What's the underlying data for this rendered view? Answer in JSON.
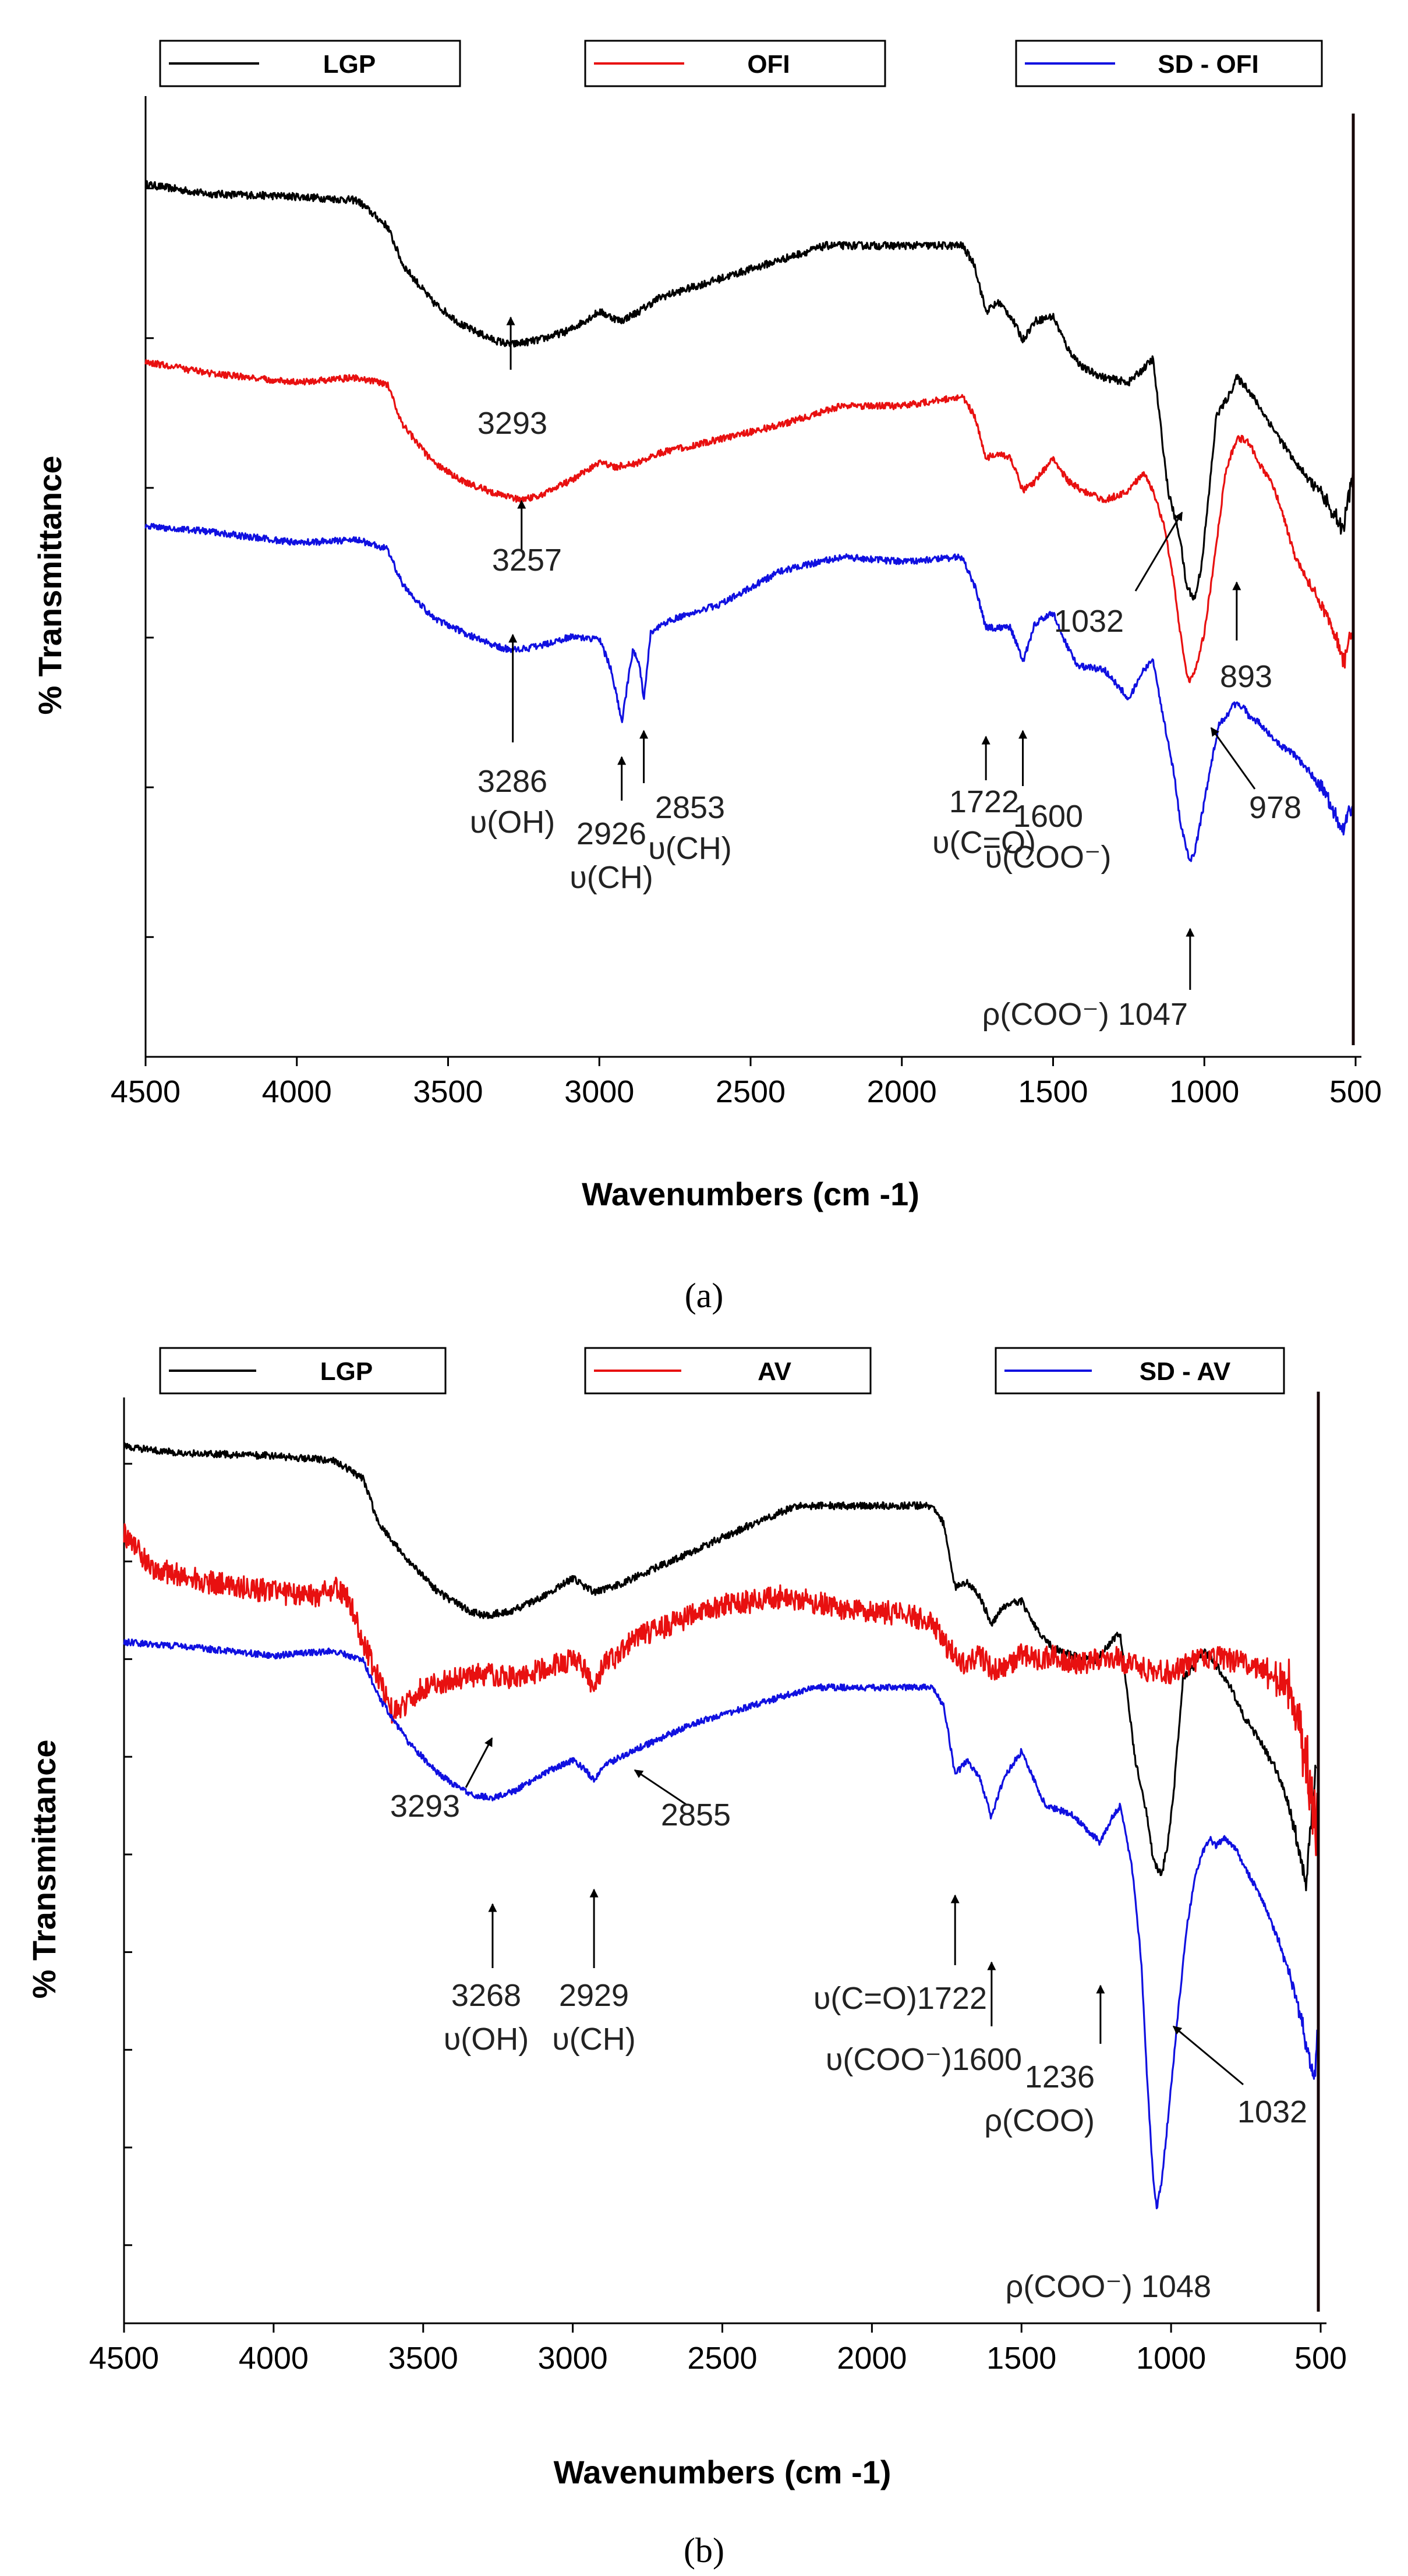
{
  "chart_data": [
    {
      "type": "line",
      "panel_label": "(a)",
      "legend": [
        {
          "name": "LGP",
          "color": "#000000"
        },
        {
          "name": "OFI",
          "color": "#e81010"
        },
        {
          "name": "SD - OFI",
          "color": "#1010e0"
        }
      ],
      "xlabel": "Wavenumbers (cm -1)",
      "ylabel": "% Transmittance",
      "xlim": [
        4500,
        500
      ],
      "x_ticks": [
        "4500",
        "4000",
        "3500",
        "3000",
        "2500",
        "2000",
        "1500",
        "1000",
        "500"
      ],
      "ylim": [
        0,
        100
      ],
      "n_y_ticks": 6,
      "series": [
        {
          "name": "LGP",
          "color": "#000000",
          "noise": 0.4,
          "x": [
            4500,
            4300,
            4000,
            3800,
            3700,
            3650,
            3550,
            3450,
            3350,
            3293,
            3200,
            3100,
            3000,
            2930,
            2870,
            2800,
            2600,
            2400,
            2250,
            2000,
            1800,
            1760,
            1722,
            1680,
            1640,
            1600,
            1560,
            1500,
            1450,
            1400,
            1330,
            1250,
            1200,
            1170,
            1120,
            1080,
            1060,
            1032,
            1010,
            990,
            960,
            920,
            893,
            860,
            840,
            800,
            760,
            700,
            650,
            600,
            560,
            540,
            520,
            505
          ],
          "y": [
            92.5,
            91.5,
            91.2,
            90.8,
            88,
            84,
            80,
            77.5,
            76,
            75.5,
            76,
            77,
            79,
            78,
            79,
            80.5,
            82.5,
            84.5,
            86,
            86,
            86,
            84,
            79,
            80,
            78.5,
            76,
            78,
            78.5,
            75,
            73,
            72,
            71.5,
            73,
            74,
            60,
            55,
            50,
            48.5,
            52,
            58,
            68,
            70,
            72,
            71,
            70,
            68,
            66,
            63,
            61,
            59,
            57,
            56,
            60,
            62
          ]
        },
        {
          "name": "OFI",
          "color": "#e81010",
          "noise": 0.35,
          "x": [
            4500,
            4300,
            4000,
            3800,
            3700,
            3650,
            3550,
            3450,
            3350,
            3257,
            3200,
            3100,
            3000,
            2950,
            2870,
            2800,
            2600,
            2400,
            2200,
            2000,
            1800,
            1760,
            1722,
            1680,
            1640,
            1600,
            1560,
            1500,
            1450,
            1400,
            1330,
            1250,
            1200,
            1170,
            1130,
            1100,
            1080,
            1060,
            1047,
            1030,
            1000,
            978,
            950,
            930,
            910,
            893,
            870,
            850,
            820,
            780,
            750,
            700,
            650,
            600,
            560,
            540,
            520,
            505
          ],
          "y": [
            73.7,
            72.5,
            71.5,
            72,
            71.3,
            67,
            63,
            61,
            59.8,
            59,
            59.5,
            61,
            63,
            62.5,
            63,
            64,
            65.5,
            67,
            69,
            69,
            70,
            68,
            63.5,
            64,
            63.5,
            60,
            61,
            63.5,
            61,
            60,
            59,
            60,
            62,
            60,
            56,
            50,
            45,
            41,
            39.8,
            41,
            45,
            50,
            57,
            62,
            64,
            65.5,
            65.5,
            65,
            63,
            61,
            58.5,
            53,
            50,
            47,
            44,
            42,
            44,
            46
          ]
        },
        {
          "name": "SD - OFI",
          "color": "#1010e0",
          "noise": 0.35,
          "x": [
            4500,
            4300,
            4000,
            3800,
            3700,
            3650,
            3550,
            3450,
            3350,
            3286,
            3200,
            3100,
            3000,
            2960,
            2926,
            2890,
            2870,
            2853,
            2830,
            2750,
            2600,
            2400,
            2200,
            2000,
            1800,
            1760,
            1722,
            1680,
            1640,
            1600,
            1560,
            1500,
            1460,
            1420,
            1330,
            1250,
            1200,
            1170,
            1130,
            1100,
            1080,
            1060,
            1047,
            1030,
            1000,
            978,
            950,
            930,
            910,
            893,
            870,
            850,
            820,
            780,
            750,
            700,
            650,
            600,
            560,
            540,
            520,
            505
          ],
          "y": [
            56.3,
            55.7,
            54.5,
            54.8,
            53.8,
            50,
            46.5,
            45,
            43.6,
            43.1,
            43.5,
            44.5,
            44.3,
            41,
            35.5,
            43,
            42,
            38,
            45,
            46.5,
            48,
            51.5,
            53,
            52.5,
            53,
            50,
            45.5,
            45.5,
            45.5,
            41.8,
            46,
            47,
            44,
            41.5,
            41,
            38,
            41,
            42,
            35,
            30,
            25,
            22,
            20.7,
            22,
            27,
            31,
            35.5,
            36,
            37,
            37.5,
            37,
            36,
            35.5,
            34,
            33,
            32,
            30,
            28,
            25,
            24,
            26,
            27
          ]
        }
      ],
      "annotations": [
        {
          "lines": [
            "3293"
          ]
        },
        {
          "lines": [
            "3257"
          ]
        },
        {
          "lines": [
            "3286",
            "υ(OH)"
          ]
        },
        {
          "lines": [
            "2926",
            "υ(CH)"
          ]
        },
        {
          "lines": [
            "2853",
            "υ(CH)"
          ]
        },
        {
          "lines": [
            "1722",
            "υ(C=O)"
          ]
        },
        {
          "lines": [
            "1600",
            "υ(COO⁻)"
          ]
        },
        {
          "lines": [
            "1032"
          ]
        },
        {
          "lines": [
            "893"
          ]
        },
        {
          "lines": [
            "978"
          ]
        },
        {
          "lines": [
            "ρ(COO⁻) 1047"
          ]
        }
      ]
    },
    {
      "type": "line",
      "panel_label": "(b)",
      "legend": [
        {
          "name": "LGP",
          "color": "#000000"
        },
        {
          "name": "AV",
          "color": "#e81010"
        },
        {
          "name": "SD - AV",
          "color": "#1010e0"
        }
      ],
      "xlabel": "Wavenumbers (cm -1)",
      "ylabel": "% Transmittance",
      "xlim": [
        4500,
        500
      ],
      "x_ticks": [
        "4500",
        "4000",
        "3500",
        "3000",
        "2500",
        "2000",
        "1500",
        "1000",
        "500"
      ],
      "ylim": [
        0,
        100
      ],
      "n_y_ticks": 9,
      "series": [
        {
          "name": "LGP",
          "color": "#000000",
          "noise": 0.4,
          "x": [
            4500,
            4300,
            4000,
            3800,
            3700,
            3650,
            3550,
            3450,
            3350,
            3293,
            3200,
            3100,
            3000,
            2930,
            2870,
            2800,
            2600,
            2400,
            2250,
            2000,
            1800,
            1760,
            1722,
            1680,
            1640,
            1600,
            1560,
            1500,
            1450,
            1400,
            1330,
            1250,
            1200,
            1170,
            1120,
            1080,
            1060,
            1032,
            1010,
            990,
            960,
            920,
            893,
            860,
            840,
            800,
            760,
            700,
            650,
            600,
            570,
            550,
            530,
            515
          ],
          "y": [
            96.5,
            95.8,
            95.5,
            95,
            93,
            88,
            84,
            80.5,
            78.5,
            77.9,
            78.5,
            80,
            82,
            80.5,
            81,
            82,
            85,
            88,
            90,
            90,
            90,
            88,
            81,
            81.5,
            80,
            77,
            79,
            79.5,
            76.5,
            74.5,
            73.5,
            73,
            75,
            76,
            62,
            56,
            51,
            49.3,
            53,
            59,
            71,
            72.5,
            74,
            73,
            72,
            70,
            67,
            64,
            61,
            56,
            52,
            48,
            56,
            62
          ]
        },
        {
          "name": "AV",
          "color": "#e81010",
          "noise": 1.3,
          "x": [
            4500,
            4400,
            4200,
            4000,
            3850,
            3800,
            3750,
            3700,
            3650,
            3600,
            3500,
            3400,
            3300,
            3200,
            3100,
            3000,
            2960,
            2930,
            2890,
            2855,
            2800,
            2700,
            2600,
            2500,
            2400,
            2300,
            2200,
            2100,
            2000,
            1900,
            1800,
            1760,
            1720,
            1680,
            1640,
            1600,
            1550,
            1500,
            1450,
            1400,
            1300,
            1200,
            1100,
            1000,
            950,
            900,
            850,
            800,
            750,
            700,
            650,
            600,
            580,
            560,
            540,
            520,
            510
          ],
          "y": [
            87,
            83,
            81.5,
            80.5,
            80,
            81,
            80,
            75,
            71,
            67,
            70,
            71,
            71.5,
            71,
            72,
            73,
            72,
            69.5,
            73,
            73,
            75.5,
            76.5,
            78,
            79,
            79.5,
            80,
            79.5,
            78.5,
            78.5,
            78,
            77.5,
            75,
            73.5,
            72.5,
            73.5,
            72,
            72,
            73.5,
            73,
            73.5,
            72.5,
            73.5,
            72,
            71.7,
            72.5,
            73,
            73.3,
            73,
            72.7,
            72,
            71,
            70,
            67,
            64,
            60,
            56,
            54
          ]
        },
        {
          "name": "SD - AV",
          "color": "#1010e0",
          "noise": 0.35,
          "x": [
            4500,
            4300,
            4000,
            3800,
            3700,
            3650,
            3550,
            3450,
            3350,
            3268,
            3200,
            3100,
            3000,
            2960,
            2929,
            2890,
            2800,
            2700,
            2600,
            2400,
            2200,
            2000,
            1800,
            1760,
            1722,
            1680,
            1640,
            1600,
            1560,
            1500,
            1460,
            1420,
            1330,
            1236,
            1200,
            1170,
            1130,
            1100,
            1080,
            1060,
            1048,
            1030,
            1000,
            980,
            950,
            920,
            893,
            870,
            850,
            820,
            780,
            750,
            700,
            650,
            600,
            560,
            540,
            520,
            510
          ],
          "y": [
            75,
            74.5,
            73.5,
            74,
            73,
            69,
            64,
            60.5,
            58.3,
            57.8,
            58.5,
            60.5,
            62,
            61,
            59.8,
            61.5,
            63,
            64.5,
            66,
            68,
            70,
            70,
            70,
            68,
            60.4,
            62,
            60,
            55.6,
            60,
            63,
            60,
            57,
            56,
            52.9,
            55.5,
            57,
            50,
            40,
            27,
            16,
            12.6,
            16,
            26,
            33,
            43,
            49,
            52,
            53.3,
            52.5,
            53.5,
            52,
            50,
            47,
            43,
            38,
            33,
            29,
            27,
            32
          ]
        }
      ],
      "annotations": [
        {
          "lines": [
            "3293"
          ]
        },
        {
          "lines": [
            "2855"
          ]
        },
        {
          "lines": [
            "3268",
            "υ(OH)"
          ]
        },
        {
          "lines": [
            "2929",
            "υ(CH)"
          ]
        },
        {
          "lines": [
            "υ(C=O)1722"
          ]
        },
        {
          "lines": [
            "υ(COO⁻)1600"
          ]
        },
        {
          "lines": [
            "1236",
            "ρ(COO)"
          ]
        },
        {
          "lines": [
            "1032"
          ]
        },
        {
          "lines": [
            "ρ(COO⁻) 1048"
          ]
        }
      ]
    }
  ]
}
